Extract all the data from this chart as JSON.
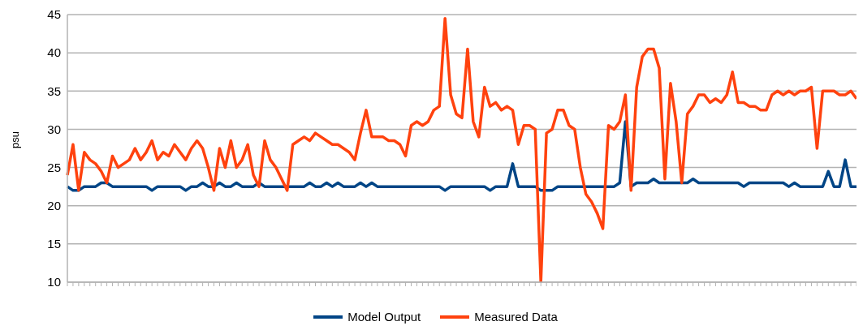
{
  "chart_data": {
    "type": "line",
    "ylabel": "psu",
    "ylim": [
      10,
      45
    ],
    "yticks": [
      10,
      15,
      20,
      25,
      30,
      35,
      40,
      45
    ],
    "grid": "y",
    "legend": "bottom",
    "tick_labels": "y",
    "marker": "none",
    "categories": [
      null,
      null,
      null,
      null,
      null,
      null,
      null,
      null,
      null,
      null,
      null,
      null,
      null,
      null,
      null,
      null,
      null,
      null,
      null,
      null,
      null,
      null,
      null,
      null,
      null,
      null,
      null,
      null,
      null,
      null,
      null,
      null,
      null,
      null,
      null,
      null,
      null,
      null,
      null,
      null,
      null,
      null,
      null,
      null,
      null,
      null,
      null,
      null,
      null,
      null,
      null,
      null,
      null,
      null,
      null,
      null,
      null,
      null,
      null,
      null,
      null,
      null,
      null,
      null,
      null,
      null,
      null,
      null,
      null,
      null,
      null,
      null,
      null,
      null,
      null,
      null,
      null,
      null,
      null,
      null,
      null,
      null,
      null,
      null,
      null,
      null,
      null,
      null,
      null,
      null,
      null,
      null,
      null,
      null,
      null,
      null,
      null,
      null,
      null,
      null,
      null,
      null,
      null,
      null,
      null,
      null,
      null,
      null,
      null,
      null,
      null,
      null,
      null,
      null,
      null,
      null,
      null,
      null,
      null,
      null,
      null,
      null,
      null,
      null,
      null,
      null,
      null,
      null,
      null,
      null,
      null,
      null,
      null,
      null,
      null,
      null,
      null,
      null,
      null,
      null,
      null
    ],
    "series": [
      {
        "name": "Model Output",
        "color": "#004586",
        "values": [
          22.5,
          22,
          22,
          22.5,
          22.5,
          22.5,
          23,
          23,
          22.5,
          22.5,
          22.5,
          22.5,
          22.5,
          22.5,
          22.5,
          22,
          22.5,
          22.5,
          22.5,
          22.5,
          22.5,
          22,
          22.5,
          22.5,
          23,
          22.5,
          22.5,
          23,
          22.5,
          22.5,
          23,
          22.5,
          22.5,
          22.5,
          23,
          22.5,
          22.5,
          22.5,
          22.5,
          22.5,
          22.5,
          22.5,
          22.5,
          23,
          22.5,
          22.5,
          23,
          22.5,
          23,
          22.5,
          22.5,
          22.5,
          23,
          22.5,
          23,
          22.5,
          22.5,
          22.5,
          22.5,
          22.5,
          22.5,
          22.5,
          22.5,
          22.5,
          22.5,
          22.5,
          22.5,
          22,
          22.5,
          22.5,
          22.5,
          22.5,
          22.5,
          22.5,
          22.5,
          22,
          22.5,
          22.5,
          22.5,
          25.5,
          22.5,
          22.5,
          22.5,
          22.5,
          22,
          22,
          22,
          22.5,
          22.5,
          22.5,
          22.5,
          22.5,
          22.5,
          22.5,
          22.5,
          22.5,
          22.5,
          22.5,
          23,
          31,
          22.5,
          23,
          23,
          23,
          23.5,
          23,
          23,
          23,
          23,
          23,
          23,
          23.5,
          23,
          23,
          23,
          23,
          23,
          23,
          23,
          23,
          22.5,
          23,
          23,
          23,
          23,
          23,
          23,
          23,
          22.5,
          23,
          22.5,
          22.5,
          22.5,
          22.5,
          22.5,
          24.5,
          22.5,
          22.5,
          26,
          22.5,
          22.5
        ]
      },
      {
        "name": "Measured Data",
        "color": "#ff420e",
        "values": [
          24,
          28,
          22,
          27,
          26,
          25.5,
          24.5,
          23,
          26.5,
          25,
          25.5,
          26,
          27.5,
          26,
          27,
          28.5,
          26,
          27,
          26.5,
          28,
          27,
          26,
          27.5,
          28.5,
          27.5,
          25,
          22,
          27.5,
          25,
          28.5,
          25,
          26,
          28,
          24,
          22.5,
          28.5,
          26,
          25,
          23.5,
          22,
          28,
          28.5,
          29,
          28.5,
          29.5,
          29,
          28.5,
          28,
          28,
          27.5,
          27,
          26,
          29.5,
          32.5,
          29,
          29,
          29,
          28.5,
          28.5,
          28,
          26.5,
          30.5,
          31,
          30.5,
          31,
          32.5,
          33,
          44.5,
          34.5,
          32,
          31.5,
          40.5,
          31,
          29,
          35.5,
          33,
          33.5,
          32.5,
          33,
          32.5,
          28,
          30.5,
          30.5,
          30,
          10,
          29.5,
          30,
          32.5,
          32.5,
          30.5,
          30,
          25,
          21.5,
          20.5,
          19,
          17,
          30.5,
          30,
          31,
          34.5,
          22,
          35.5,
          39.5,
          40.5,
          40.5,
          38,
          23.5,
          36,
          31,
          23,
          32,
          33,
          34.5,
          34.5,
          33.5,
          34,
          33.5,
          34.5,
          37.5,
          33.5,
          33.5,
          33,
          33,
          32.5,
          32.5,
          34.5,
          35,
          34.5,
          35,
          34.5,
          35,
          35,
          35.5,
          27.5,
          35,
          35,
          35,
          34.5,
          34.5,
          35,
          34
        ]
      }
    ]
  }
}
